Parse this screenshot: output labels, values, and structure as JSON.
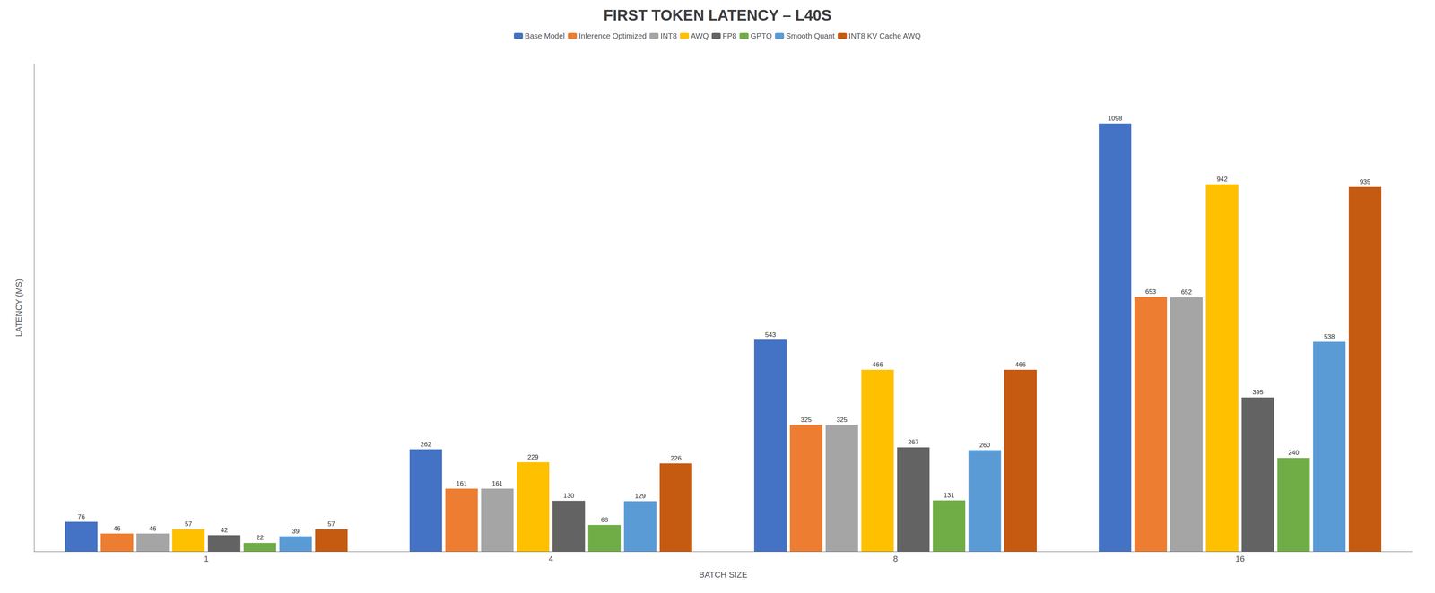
{
  "chart_data": {
    "type": "bar",
    "title": "FIRST TOKEN LATENCY – L40S",
    "xlabel": "BATCH SIZE",
    "ylabel": "LATENCY (MS)",
    "categories": [
      1,
      4,
      8,
      16
    ],
    "series": [
      {
        "name": "Base Model",
        "color": "#4472c4",
        "values": [
          76,
          262,
          543,
          1098
        ]
      },
      {
        "name": "Inference Optimized",
        "color": "#ed7d31",
        "values": [
          46,
          161,
          325,
          653
        ]
      },
      {
        "name": "INT8",
        "color": "#a5a5a5",
        "values": [
          46,
          161,
          325,
          652
        ]
      },
      {
        "name": "AWQ",
        "color": "#ffc000",
        "values": [
          57,
          229,
          466,
          942
        ]
      },
      {
        "name": "FP8",
        "color": "#636363",
        "values": [
          42,
          130,
          267,
          395
        ]
      },
      {
        "name": "GPTQ",
        "color": "#70ad47",
        "values": [
          22,
          68,
          131,
          240
        ]
      },
      {
        "name": "Smooth Quant",
        "color": "#5b9bd5",
        "values": [
          39,
          129,
          260,
          538
        ]
      },
      {
        "name": "INT8 KV Cache AWQ",
        "color": "#c55a11",
        "values": [
          57,
          226,
          466,
          935
        ]
      }
    ],
    "ylim": [
      0,
      1250
    ],
    "tick_labels": "x",
    "grid": false,
    "legend": "top",
    "data_labels": true
  }
}
